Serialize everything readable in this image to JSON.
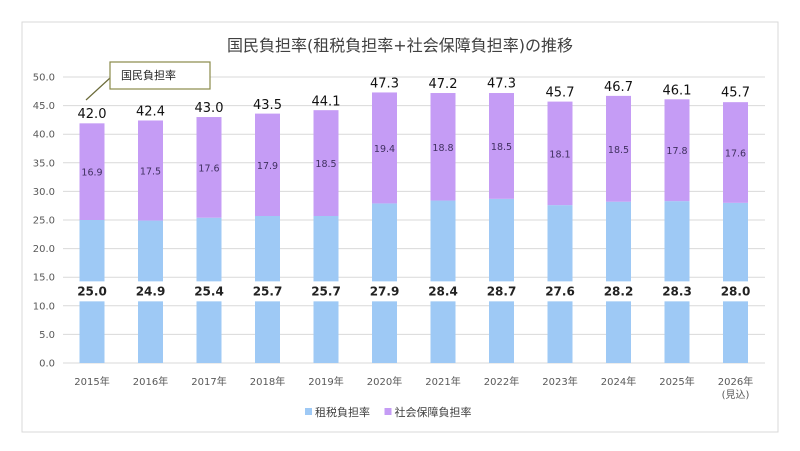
{
  "chart_data": {
    "type": "bar",
    "stacked": true,
    "title": "国民負担率(租税負担率+社会保障負担率)の推移",
    "xlabel": "",
    "ylabel": "",
    "ylim": [
      0,
      50
    ],
    "yticks": [
      "0.0",
      "5.0",
      "10.0",
      "15.0",
      "20.0",
      "25.0",
      "30.0",
      "35.0",
      "40.0",
      "45.0",
      "50.0"
    ],
    "grid": true,
    "legend_position": "bottom",
    "categories": [
      "2015年",
      "2016年",
      "2017年",
      "2018年",
      "2019年",
      "2020年",
      "2021年",
      "2022年",
      "2023年",
      "2024年",
      "2025年",
      "2026年"
    ],
    "category_note": {
      "index": 11,
      "text": "(見込)"
    },
    "series": [
      {
        "name": "租税負担率",
        "color": "#9ec9f5",
        "values": [
          25.0,
          24.9,
          25.4,
          25.7,
          25.7,
          27.9,
          28.4,
          28.7,
          27.6,
          28.2,
          28.3,
          28.0
        ]
      },
      {
        "name": "社会保障負担率",
        "color": "#c59cf5",
        "values": [
          16.9,
          17.5,
          17.6,
          17.9,
          18.5,
          19.4,
          18.8,
          18.5,
          18.1,
          18.5,
          17.8,
          17.6
        ]
      }
    ],
    "totals": [
      42.0,
      42.4,
      43.0,
      43.5,
      44.1,
      47.3,
      47.2,
      47.3,
      45.7,
      46.7,
      46.1,
      45.7
    ],
    "annotation": "国民負担率"
  }
}
